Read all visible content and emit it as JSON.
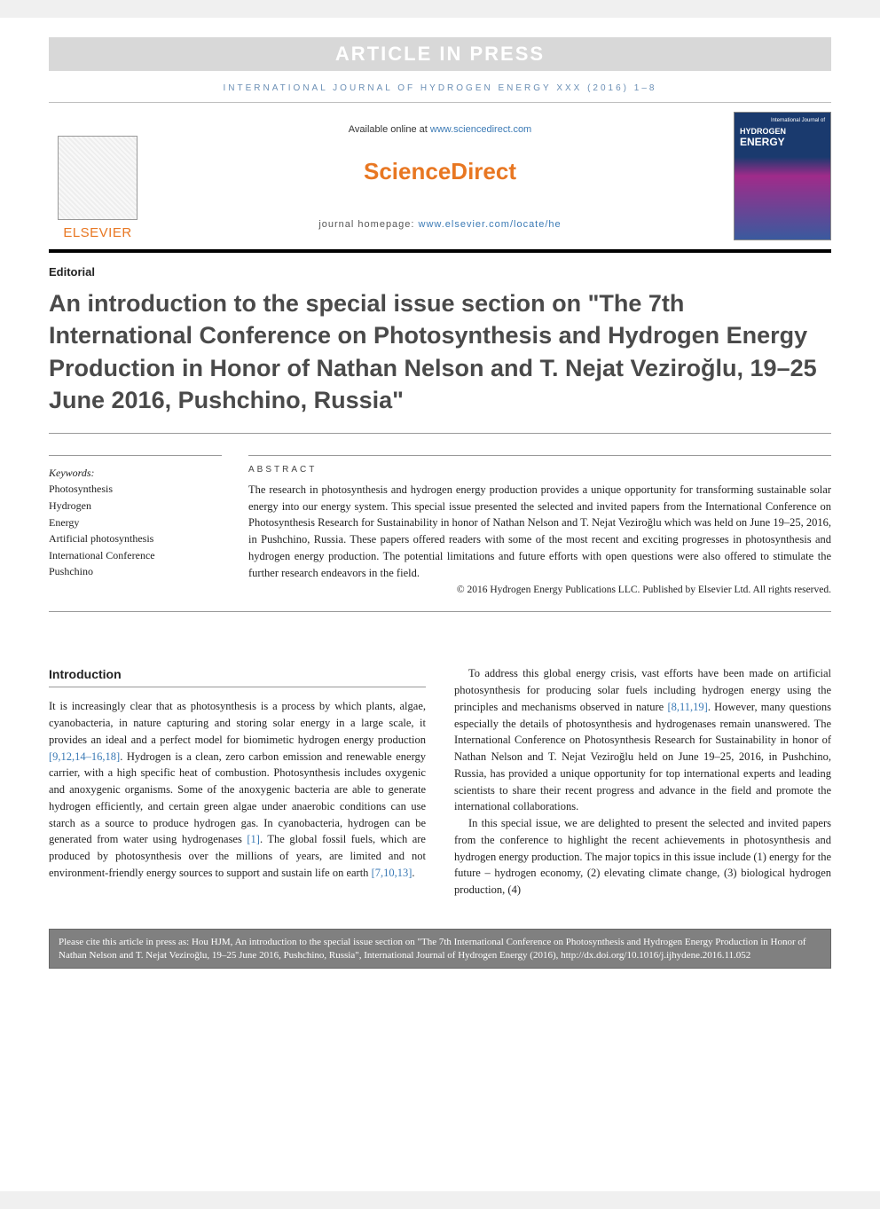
{
  "banner": "ARTICLE IN PRESS",
  "citation_top": "INTERNATIONAL JOURNAL OF HYDROGEN ENERGY XXX (2016) 1–8",
  "header": {
    "available_prefix": "Available online at ",
    "available_link": "www.sciencedirect.com",
    "sd_logo": "ScienceDirect",
    "homepage_prefix": "journal homepage: ",
    "homepage_link": "www.elsevier.com/locate/he",
    "publisher": "ELSEVIER",
    "cover_top": "International Journal of",
    "cover_line1": "HYDROGEN",
    "cover_line2": "ENERGY"
  },
  "article_type": "Editorial",
  "title": "An introduction to the special issue section on \"The 7th International Conference on Photosynthesis and Hydrogen Energy Production in Honor of Nathan Nelson and T. Nejat Veziroğlu, 19–25 June 2016, Pushchino, Russia\"",
  "keywords": {
    "label": "Keywords:",
    "items": [
      "Photosynthesis",
      "Hydrogen",
      "Energy",
      "Artificial photosynthesis",
      "International Conference",
      "Pushchino"
    ]
  },
  "abstract": {
    "heading": "ABSTRACT",
    "text": "The research in photosynthesis and hydrogen energy production provides a unique opportunity for transforming sustainable solar energy into our energy system. This special issue presented the selected and invited papers from the International Conference on Photosynthesis Research for Sustainability in honor of Nathan Nelson and T. Nejat Veziroğlu which was held on June 19–25, 2016, in Pushchino, Russia. These papers offered readers with some of the most recent and exciting progresses in photosynthesis and hydrogen energy production. The potential limitations and future efforts with open questions were also offered to stimulate the further research endeavors in the field.",
    "copyright": "© 2016 Hydrogen Energy Publications LLC. Published by Elsevier Ltd. All rights reserved."
  },
  "body": {
    "intro_heading": "Introduction",
    "left": {
      "p1a": "It is increasingly clear that as photosynthesis is a process by which plants, algae, cyanobacteria, in nature capturing and storing solar energy in a large scale, it provides an ideal and a perfect model for biomimetic hydrogen energy production ",
      "p1_ref1": "[9,12,14–16,18]",
      "p1b": ". Hydrogen is a clean, zero carbon emission and renewable energy carrier, with a high specific heat of combustion. Photosynthesis includes oxygenic and anoxygenic organisms. Some of the anoxygenic bacteria are able to generate hydrogen efficiently, and certain green algae under anaerobic conditions can use starch as a source to produce hydrogen gas. In cyanobacteria, hydrogen can be generated from water using hydrogenases ",
      "p1_ref2": "[1]",
      "p1c": ". The global fossil fuels, which are produced by photosynthesis over the millions of years, are limited and not environment-friendly energy sources to support and sustain life on earth ",
      "p1_ref3": "[7,10,13]",
      "p1d": "."
    },
    "right": {
      "p1a": "To address this global energy crisis, vast efforts have been made on artificial photosynthesis for producing solar fuels including hydrogen energy using the principles and mechanisms observed in nature ",
      "p1_ref1": "[8,11,19]",
      "p1b": ". However, many questions especially the details of photosynthesis and hydrogenases remain unanswered. The International Conference on Photosynthesis Research for Sustainability in honor of Nathan Nelson and T. Nejat Veziroğlu held on June 19–25, 2016, in Pushchino, Russia, has provided a unique opportunity for top international experts and leading scientists to share their recent progress and advance in the field and promote the international collaborations.",
      "p2": "In this special issue, we are delighted to present the selected and invited papers from the conference to highlight the recent achievements in photosynthesis and hydrogen energy production. The major topics in this issue include (1) energy for the future – hydrogen economy, (2) elevating climate change, (3) biological hydrogen production, (4) "
    }
  },
  "citation_box": "Please cite this article in press as: Hou HJM, An introduction to the special issue section on \"The 7th International Conference on Photosynthesis and Hydrogen Energy Production in Honor of Nathan Nelson and T. Nejat Veziroğlu, 19–25 June 2016, Pushchino, Russia\", International Journal of Hydrogen Energy (2016), http://dx.doi.org/10.1016/j.ijhydene.2016.11.052",
  "colors": {
    "banner_bg": "#d8d8d8",
    "banner_fg": "#ffffff",
    "link": "#3b7ab5",
    "orange": "#e87722",
    "citation_header": "#6b8fb5",
    "title_gray": "#4a4a4a",
    "footer_bg": "#808080"
  }
}
